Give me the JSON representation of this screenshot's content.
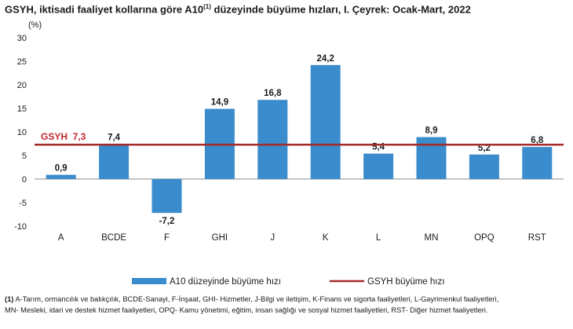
{
  "title": {
    "main": "GSYH, iktisadi faaliyet kollarına göre A10",
    "sup": "(1)",
    "rest": " düzeyinde büyüme hızları, I. Çeyrek: Ocak-Mart, 2022"
  },
  "colors": {
    "bar": "#3a8ccc",
    "line": "#a52a2a",
    "gsyh_label": "#c0282e"
  },
  "chart_data": {
    "type": "bar",
    "title": "GSYH, iktisadi faaliyet kollarına göre A10(1) düzeyinde büyüme hızları, I. Çeyrek: Ocak-Mart, 2022",
    "ylabel": "(%)",
    "ylim": [
      -10,
      30
    ],
    "yticks": [
      "-10",
      "-5",
      "0",
      "5",
      "10",
      "15",
      "20",
      "25",
      "30"
    ],
    "categories": [
      "A",
      "BCDE",
      "F",
      "GHI",
      "J",
      "K",
      "L",
      "MN",
      "OPQ",
      "RST"
    ],
    "values": [
      0.9,
      7.4,
      -7.2,
      14.9,
      16.8,
      24.2,
      5.4,
      8.9,
      5.2,
      6.8
    ],
    "value_labels": [
      "0,9",
      "7,4",
      "-7,2",
      "14,9",
      "16,8",
      "24,2",
      "5,4",
      "8,9",
      "5,2",
      "6,8"
    ],
    "reference_line": {
      "name": "GSYH",
      "value": 7.3,
      "label": "GSYH  7,3"
    },
    "legend": {
      "bars": "A10 düzeyinde büyüme hızı",
      "line": "GSYH büyüme hızı",
      "placement": "bottom"
    },
    "grid": false
  },
  "footnote": {
    "marker": "(1)",
    "line1": " A-Tarım, ormancılık ve balıkçılık, BCDE-Sanayi, F-İnşaat, GHI- Hizmetler, J-Bilgi ve iletişim, K-Finans ve sigorta faaliyetleri, L-Gayrimenkul faaliyetleri,",
    "line2": "MN- Mesleki, idari ve destek hizmet faaliyetleri, OPQ- Kamu yönetimi, eğitim, insan sağlığı ve sosyal hizmet faaliyetleri, RST- Diğer hizmet faaliyetleri."
  }
}
